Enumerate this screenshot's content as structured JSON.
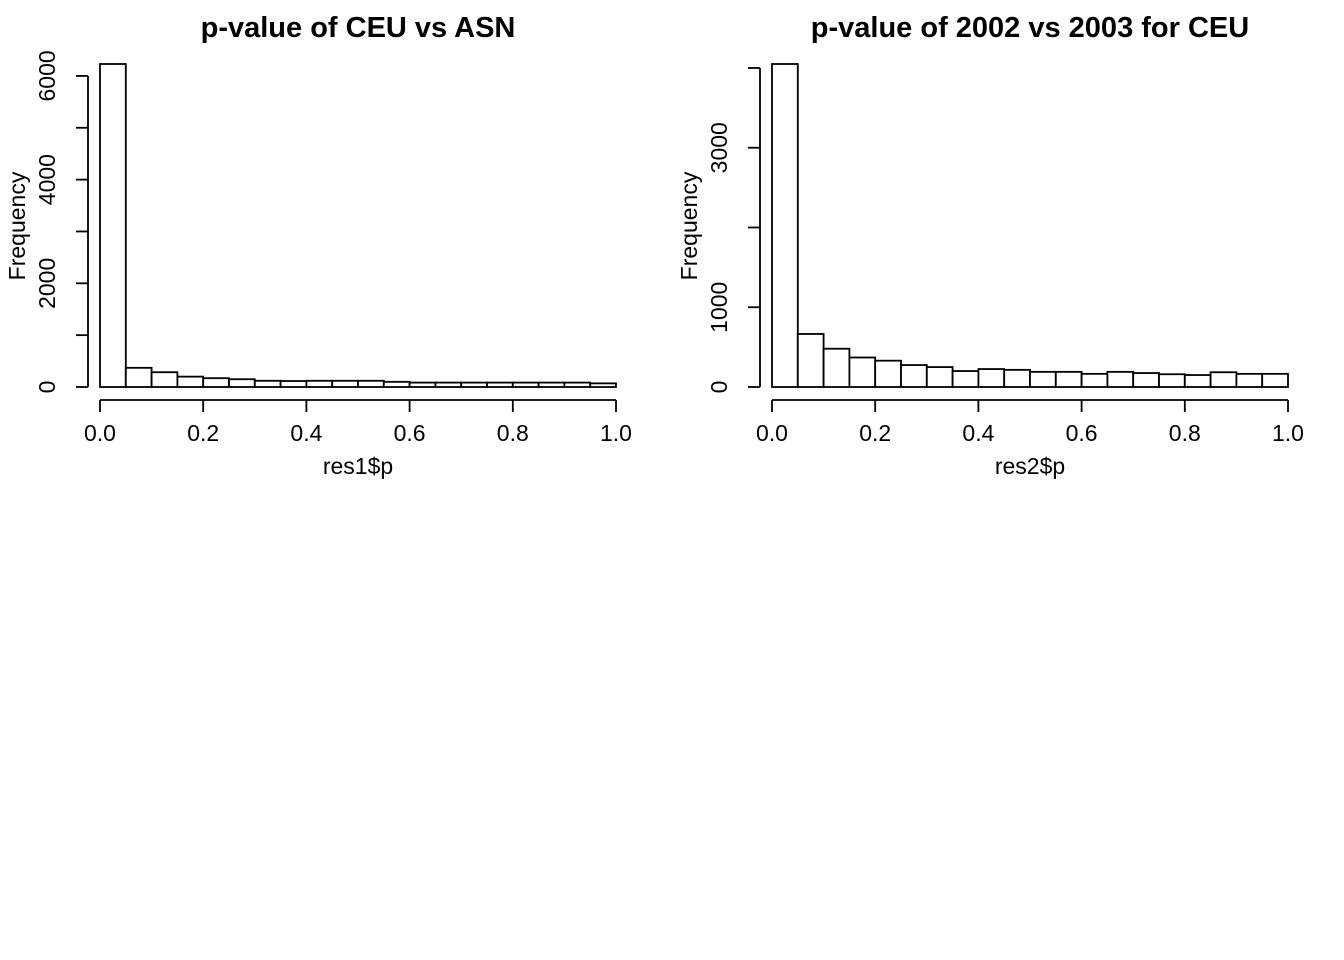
{
  "chart_data": [
    {
      "type": "bar",
      "title": "p-value of CEU vs ASN",
      "xlabel": "res1$p",
      "ylabel": "Frequency",
      "bin_edges": [
        0,
        0.05,
        0.1,
        0.15,
        0.2,
        0.25,
        0.3,
        0.35,
        0.4,
        0.45,
        0.5,
        0.55,
        0.6,
        0.65,
        0.7,
        0.75,
        0.8,
        0.85,
        0.9,
        0.95,
        1.0
      ],
      "values": [
        6230,
        370,
        285,
        200,
        170,
        150,
        120,
        115,
        120,
        120,
        120,
        100,
        85,
        85,
        85,
        85,
        85,
        85,
        85,
        70
      ],
      "xlim": [
        0,
        1
      ],
      "ylim": [
        0,
        6230
      ],
      "x_ticks": [
        "0.0",
        "0.2",
        "0.4",
        "0.6",
        "0.8",
        "1.0"
      ],
      "y_ticks": [
        "0",
        "2000",
        "4000",
        "6000"
      ],
      "y_minor_ticks": [
        1000,
        3000,
        5000
      ],
      "grid": false
    },
    {
      "type": "bar",
      "title": "p-value of 2002 vs 2003 for CEU",
      "xlabel": "res2$p",
      "ylabel": "Frequency",
      "bin_edges": [
        0,
        0.05,
        0.1,
        0.15,
        0.2,
        0.25,
        0.3,
        0.35,
        0.4,
        0.45,
        0.5,
        0.55,
        0.6,
        0.65,
        0.7,
        0.75,
        0.8,
        0.85,
        0.9,
        0.95,
        1.0
      ],
      "values": [
        4050,
        665,
        480,
        370,
        330,
        275,
        250,
        200,
        225,
        215,
        190,
        190,
        165,
        190,
        175,
        160,
        150,
        185,
        165,
        165
      ],
      "xlim": [
        0,
        1
      ],
      "ylim": [
        0,
        4050
      ],
      "x_ticks": [
        "0.0",
        "0.2",
        "0.4",
        "0.6",
        "0.8",
        "1.0"
      ],
      "y_ticks": [
        "0",
        "1000",
        "3000"
      ],
      "y_minor_ticks": [
        2000,
        4000
      ],
      "grid": false
    }
  ]
}
